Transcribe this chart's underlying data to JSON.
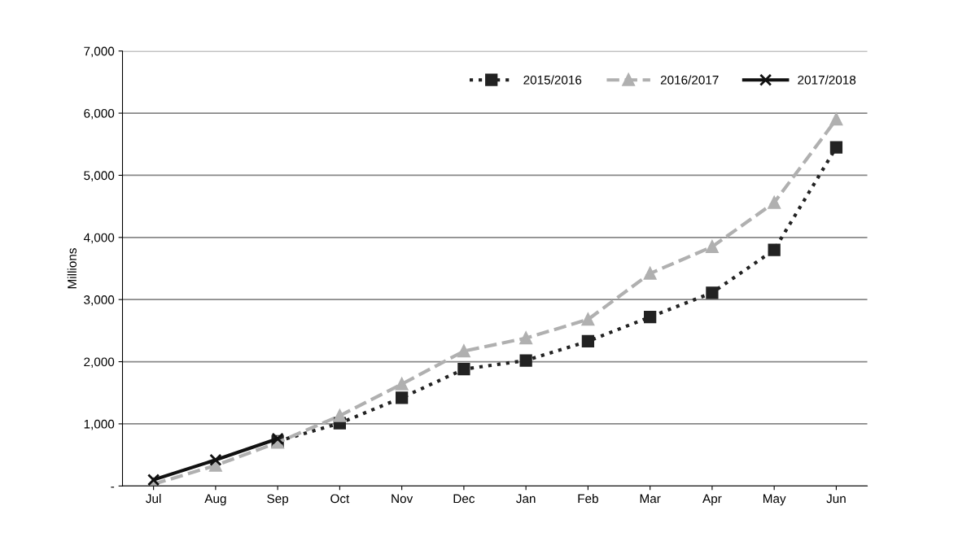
{
  "chart_data": {
    "type": "line",
    "ylabel": "Millions",
    "categories": [
      "Jul",
      "Aug",
      "Sep",
      "Oct",
      "Nov",
      "Dec",
      "Jan",
      "Feb",
      "Mar",
      "Apr",
      "May",
      "Jun"
    ],
    "series": [
      {
        "name": "2015/2016",
        "color": "#222222",
        "marker": "square",
        "line_style": "dotted",
        "values": [
          null,
          null,
          720,
          1010,
          1420,
          1880,
          2020,
          2330,
          2720,
          3110,
          3800,
          5450
        ]
      },
      {
        "name": "2016/2017",
        "color": "#b0b0b0",
        "marker": "triangle",
        "line_style": "dashed",
        "values": [
          30,
          330,
          700,
          1130,
          1640,
          2170,
          2380,
          2680,
          3420,
          3850,
          4560,
          5900
        ]
      },
      {
        "name": "2017/2018",
        "color": "#111111",
        "marker": "cross",
        "line_style": "solid",
        "values": [
          100,
          420,
          760,
          null,
          null,
          null,
          null,
          null,
          null,
          null,
          null,
          null
        ]
      }
    ],
    "ylim": [
      0,
      7000
    ],
    "yticks": [
      {
        "value": 0,
        "label": "-"
      },
      {
        "value": 1000,
        "label": "1,000"
      },
      {
        "value": 2000,
        "label": "2,000"
      },
      {
        "value": 3000,
        "label": "3,000"
      },
      {
        "value": 4000,
        "label": "4,000"
      },
      {
        "value": 5000,
        "label": "5,000"
      },
      {
        "value": 6000,
        "label": "6,000"
      },
      {
        "value": 7000,
        "label": "7,000"
      }
    ],
    "grid": "y",
    "legend": "top right"
  }
}
